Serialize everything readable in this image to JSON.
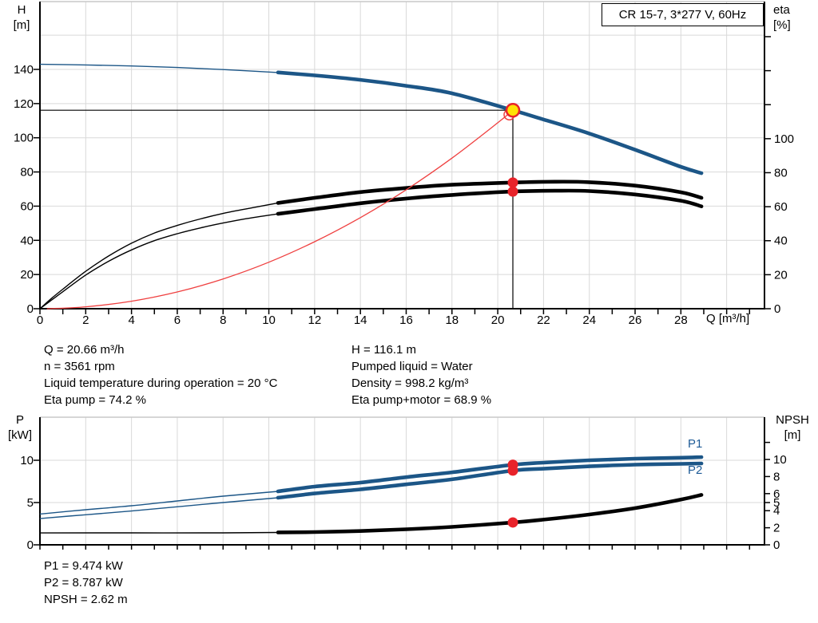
{
  "title_box": "CR 15-7, 3*277 V, 60Hz",
  "top_chart": {
    "y_left": {
      "name": "H",
      "unit": "[m]"
    },
    "y_right": {
      "name": "eta",
      "unit": "[%]"
    },
    "x_label": "Q [m³/h]"
  },
  "bottom_chart": {
    "y_left": {
      "name": "P",
      "unit": "[kW]"
    },
    "y_right": {
      "name": "NPSH",
      "unit": "[m]"
    },
    "p1_label": "P1",
    "p2_label": "P2"
  },
  "info_top_left": [
    "Q = 20.66 m³/h",
    "n = 3561 rpm",
    "Liquid temperature during operation = 20 °C",
    "Eta pump = 74.2 %"
  ],
  "info_top_right": [
    "H = 116.1 m",
    "Pumped liquid = Water",
    "Density = 998.2 kg/m³",
    "Eta pump+motor = 68.9 %"
  ],
  "info_bottom": [
    "P1 = 9.474 kW",
    "P2 = 8.787 kW",
    "NPSH = 2.62 m"
  ],
  "colors": {
    "curve_blue": "#1c5687",
    "label_blue": "#1d5a96",
    "curve_red": "#ef4040",
    "dot_red": "#e8232a",
    "duty_yellow": "#ffe105",
    "grid": "#d9d9d9",
    "axis": "#000000"
  },
  "chart_data": [
    {
      "type": "line",
      "title": "CR 15-7, 3*277 V, 60Hz",
      "xlabel": "Q [m³/h]",
      "xlim": [
        0,
        31.6
      ],
      "x_tick_minor_step": 1,
      "x_tick_labels": [
        0,
        2,
        4,
        6,
        8,
        10,
        12,
        14,
        16,
        18,
        20,
        22,
        24,
        26,
        28
      ],
      "ylabel_left": "H [m]",
      "ylim_left": [
        0,
        180
      ],
      "left_ticks": [
        0,
        20,
        40,
        60,
        80,
        100,
        120,
        140
      ],
      "grid_h_values": [
        20,
        40,
        60,
        80,
        100,
        120,
        140,
        160
      ],
      "ylabel_right": "eta [%]",
      "ylim_right": [
        0,
        100
      ],
      "right_ticks_labeled": [
        0,
        20,
        40,
        60,
        80,
        100
      ],
      "right_ticks_unlabeled": [
        120,
        140,
        160
      ],
      "grid": true,
      "duty_point": {
        "Q": 20.66,
        "H": 116.1
      },
      "series": [
        {
          "name": "pump-head-curve",
          "axis": "H",
          "role": "head",
          "thick_from": 10.4,
          "points": [
            [
              0,
              143
            ],
            [
              2,
              142.6
            ],
            [
              4,
              142
            ],
            [
              6,
              141.1
            ],
            [
              8,
              139.9
            ],
            [
              10.4,
              138.2
            ],
            [
              12,
              136.5
            ],
            [
              14,
              133.9
            ],
            [
              16,
              130.4
            ],
            [
              18,
              126
            ],
            [
              20.66,
              116.1
            ],
            [
              22,
              110.7
            ],
            [
              24,
              102.5
            ],
            [
              26,
              93
            ],
            [
              28,
              83
            ],
            [
              28.9,
              79.3
            ]
          ]
        },
        {
          "name": "eta-pump-curve",
          "axis": "eta",
          "role": "eta",
          "thick_from": 10.4,
          "points": [
            [
              0,
              0
            ],
            [
              0.5,
              6
            ],
            [
              1,
              11.5
            ],
            [
              2,
              22
            ],
            [
              3,
              31
            ],
            [
              4,
              38.5
            ],
            [
              5,
              44.5
            ],
            [
              6,
              49
            ],
            [
              7,
              52.8
            ],
            [
              8,
              56
            ],
            [
              9,
              58.7
            ],
            [
              10.4,
              62.2
            ],
            [
              12,
              65.2
            ],
            [
              14,
              68.6
            ],
            [
              16,
              71
            ],
            [
              18,
              72.9
            ],
            [
              20.66,
              74.2
            ],
            [
              22.5,
              74.7
            ],
            [
              24,
              74.4
            ],
            [
              26,
              72.4
            ],
            [
              28,
              68.5
            ],
            [
              28.9,
              65.2
            ]
          ]
        },
        {
          "name": "eta-pump-motor-curve",
          "axis": "eta",
          "role": "eta",
          "thick_from": 10.4,
          "points": [
            [
              0,
              0
            ],
            [
              0.5,
              5
            ],
            [
              1,
              10
            ],
            [
              2,
              19.8
            ],
            [
              3,
              27.9
            ],
            [
              4,
              34.6
            ],
            [
              5,
              40
            ],
            [
              6,
              44.1
            ],
            [
              7,
              47.5
            ],
            [
              8,
              50.4
            ],
            [
              9,
              52.9
            ],
            [
              10.4,
              55.8
            ],
            [
              12,
              58.6
            ],
            [
              14,
              62
            ],
            [
              16,
              64.8
            ],
            [
              18,
              66.9
            ],
            [
              20.66,
              68.9
            ],
            [
              22.5,
              69.4
            ],
            [
              24,
              69.2
            ],
            [
              26,
              67.2
            ],
            [
              28,
              63.5
            ],
            [
              28.9,
              60.2
            ]
          ]
        },
        {
          "name": "system-curve",
          "axis": "H",
          "role": "system",
          "points": [
            [
              0.3,
              0
            ],
            [
              2,
              1.1
            ],
            [
              4,
              4.4
            ],
            [
              6,
              9.8
            ],
            [
              8,
              17.4
            ],
            [
              10,
              27.2
            ],
            [
              12,
              39.2
            ],
            [
              14,
              53.3
            ],
            [
              16,
              69.6
            ],
            [
              18,
              88.1
            ],
            [
              20,
              108.8
            ],
            [
              20.66,
              116.1
            ]
          ]
        }
      ],
      "markers": [
        {
          "axis": "eta",
          "Q": 20.66,
          "v": 74.2
        },
        {
          "axis": "eta",
          "Q": 20.66,
          "v": 68.9
        }
      ]
    },
    {
      "type": "line",
      "xlabel": "",
      "xlim": [
        0,
        31.6
      ],
      "x_tick_minor_step": 1,
      "ylabel_left": "P [kW]",
      "ylim_left": [
        0,
        15
      ],
      "left_ticks": [
        0,
        5,
        10
      ],
      "grid_h_values_P": [
        5,
        10
      ],
      "ylabel_right": "NPSH [m]",
      "right_ticks": [
        [
          0,
          "0"
        ],
        [
          2,
          "2"
        ],
        [
          4,
          "4"
        ],
        [
          5,
          "5"
        ],
        [
          6,
          "6"
        ],
        [
          8,
          "8"
        ],
        [
          10,
          "10"
        ],
        [
          12,
          ""
        ]
      ],
      "grid": true,
      "series": [
        {
          "name": "p1-curve",
          "axis": "P",
          "role": "power",
          "thick_from": 10.4,
          "points": [
            [
              0,
              3.64
            ],
            [
              2,
              4.15
            ],
            [
              4,
              4.62
            ],
            [
              6,
              5.19
            ],
            [
              8,
              5.75
            ],
            [
              10.4,
              6.32
            ],
            [
              12,
              6.89
            ],
            [
              14,
              7.36
            ],
            [
              16,
              8.0
            ],
            [
              18,
              8.58
            ],
            [
              20.66,
              9.474
            ],
            [
              22,
              9.72
            ],
            [
              24,
              10.0
            ],
            [
              26,
              10.19
            ],
            [
              28,
              10.3
            ],
            [
              28.9,
              10.38
            ]
          ]
        },
        {
          "name": "p2-curve",
          "axis": "P",
          "role": "power",
          "thick_from": 10.4,
          "points": [
            [
              0,
              3.11
            ],
            [
              2,
              3.56
            ],
            [
              4,
              4.0
            ],
            [
              6,
              4.5
            ],
            [
              8,
              5.0
            ],
            [
              10.4,
              5.57
            ],
            [
              12,
              6.08
            ],
            [
              14,
              6.56
            ],
            [
              16,
              7.15
            ],
            [
              18,
              7.75
            ],
            [
              20.66,
              8.787
            ],
            [
              22,
              9.0
            ],
            [
              24,
              9.28
            ],
            [
              26,
              9.48
            ],
            [
              28,
              9.58
            ],
            [
              28.9,
              9.62
            ]
          ]
        },
        {
          "name": "npsh-curve",
          "axis": "N",
          "role": "npsh",
          "thick_from": 10.4,
          "points": [
            [
              0,
              1.4
            ],
            [
              4,
              1.4
            ],
            [
              8,
              1.4
            ],
            [
              10.4,
              1.45
            ],
            [
              12,
              1.5
            ],
            [
              14,
              1.62
            ],
            [
              16,
              1.82
            ],
            [
              18,
              2.1
            ],
            [
              20.66,
              2.62
            ],
            [
              22,
              2.95
            ],
            [
              24,
              3.55
            ],
            [
              26,
              4.3
            ],
            [
              28,
              5.3
            ],
            [
              28.9,
              5.85
            ]
          ]
        }
      ],
      "markers": [
        {
          "axis": "P",
          "Q": 20.66,
          "v": 9.474
        },
        {
          "axis": "P",
          "Q": 20.66,
          "v": 8.787
        },
        {
          "axis": "N",
          "Q": 20.66,
          "v": 2.62
        }
      ]
    }
  ]
}
